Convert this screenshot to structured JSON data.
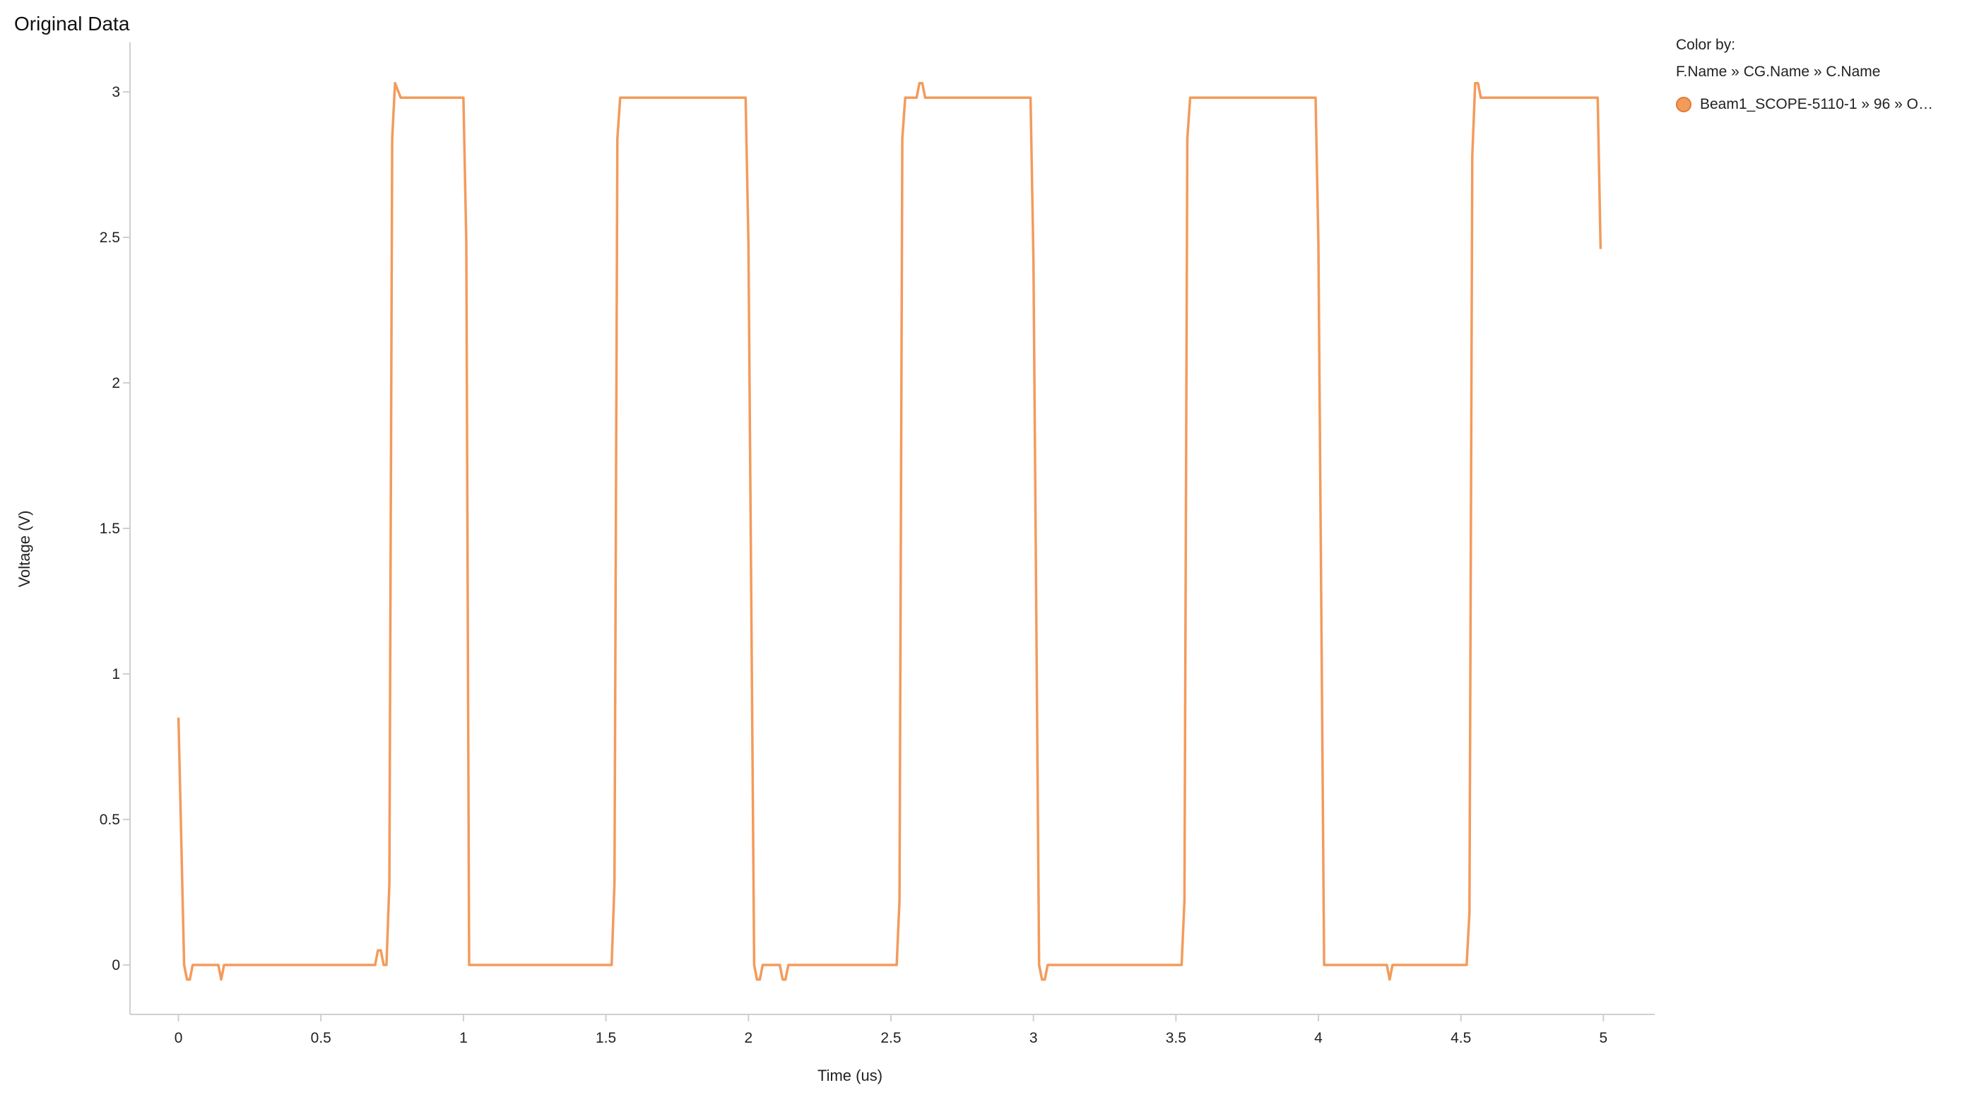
{
  "panel": {
    "title": "Original Data"
  },
  "legend": {
    "color_by_title": "Color by:",
    "color_by_path": "F.Name » CG.Name » C.Name",
    "items": [
      {
        "label": "Beam1_SCOPE-5110-1 » 96 » O…",
        "color": "#f39b5b"
      }
    ]
  },
  "chart_data": {
    "type": "line",
    "xlabel": "Time (us)",
    "ylabel": "Voltage (V)",
    "xlim": [
      -0.17,
      5.18
    ],
    "ylim": [
      -0.17,
      3.17
    ],
    "x_ticks": [
      0,
      0.5,
      1,
      1.5,
      2,
      2.5,
      3,
      3.5,
      4,
      4.5,
      5
    ],
    "x_tick_labels": [
      "0",
      "0.5",
      "1",
      "1.5",
      "2",
      "2.5",
      "3",
      "3.5",
      "4",
      "4.5",
      "5"
    ],
    "y_ticks": [
      0,
      0.5,
      1,
      1.5,
      2,
      2.5,
      3
    ],
    "y_tick_labels": [
      "0",
      "0.5",
      "1",
      "1.5",
      "2",
      "2.5",
      "3"
    ],
    "grid": false,
    "legend_position": "top-right",
    "series": [
      {
        "name": "Beam1_SCOPE-5110-1 » 96 » O…",
        "color": "#f39b5b",
        "x": [
          0.0,
          0.02,
          0.03,
          0.04,
          0.05,
          0.14,
          0.15,
          0.16,
          0.69,
          0.7,
          0.71,
          0.72,
          0.73,
          0.74,
          0.75,
          0.76,
          0.78,
          0.99,
          1.0,
          1.01,
          1.02,
          1.52,
          1.53,
          1.54,
          1.55,
          1.56,
          1.98,
          1.99,
          2.0,
          2.02,
          2.03,
          2.04,
          2.05,
          2.11,
          2.12,
          2.13,
          2.14,
          2.52,
          2.53,
          2.54,
          2.55,
          2.56,
          2.59,
          2.6,
          2.61,
          2.62,
          2.98,
          2.99,
          3.0,
          3.02,
          3.03,
          3.04,
          3.05,
          3.52,
          3.53,
          3.54,
          3.55,
          3.56,
          3.98,
          3.99,
          4.0,
          4.02,
          4.03,
          4.24,
          4.25,
          4.26,
          4.52,
          4.53,
          4.54,
          4.55,
          4.56,
          4.57,
          4.58,
          4.98,
          4.99
        ],
        "y": [
          0.85,
          0.0,
          -0.05,
          -0.05,
          0.0,
          0.0,
          -0.05,
          0.0,
          0.0,
          0.05,
          0.05,
          0.0,
          0.0,
          0.28,
          2.84,
          3.03,
          2.98,
          2.98,
          2.98,
          2.48,
          0.0,
          0.0,
          0.28,
          2.84,
          2.98,
          2.98,
          2.98,
          2.98,
          2.48,
          0.0,
          -0.05,
          -0.05,
          0.0,
          0.0,
          -0.05,
          -0.05,
          0.0,
          0.0,
          0.22,
          2.84,
          2.98,
          2.98,
          2.98,
          3.03,
          3.03,
          2.98,
          2.98,
          2.98,
          2.42,
          0.0,
          -0.05,
          -0.05,
          0.0,
          0.0,
          0.22,
          2.84,
          2.98,
          2.98,
          2.98,
          2.98,
          2.48,
          0.0,
          0.0,
          0.0,
          -0.05,
          0.0,
          0.0,
          0.18,
          2.78,
          3.03,
          3.03,
          2.98,
          2.98,
          2.98,
          2.46
        ]
      }
    ]
  }
}
